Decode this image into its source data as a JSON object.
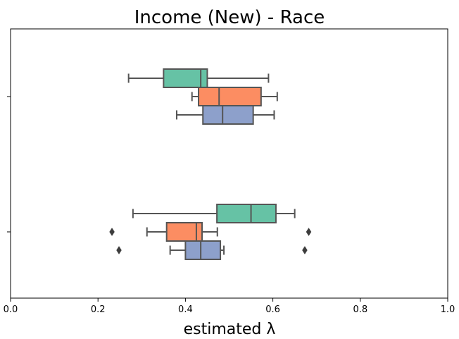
{
  "chart_data": {
    "type": "boxplot",
    "orientation": "horizontal",
    "title": "Income (New) - Race",
    "xlabel": "estimated λ",
    "ylabel": "",
    "xlim": [
      0.0,
      1.0
    ],
    "xticks": [
      "0.0",
      "0.2",
      "0.4",
      "0.6",
      "0.8",
      "1.0"
    ],
    "grid": false,
    "legend": "none",
    "groups": [
      {
        "boxes": [
          {
            "color": "#66c2a5",
            "whislo": 0.27,
            "q1": 0.35,
            "median": 0.435,
            "q3": 0.45,
            "whishi": 0.59,
            "fliers": []
          },
          {
            "color": "#fc8d62",
            "whislo": 0.415,
            "q1": 0.43,
            "median": 0.477,
            "q3": 0.573,
            "whishi": 0.61,
            "fliers": []
          },
          {
            "color": "#8da0cb",
            "whislo": 0.38,
            "q1": 0.44,
            "median": 0.485,
            "q3": 0.555,
            "whishi": 0.603,
            "fliers": []
          }
        ]
      },
      {
        "boxes": [
          {
            "color": "#66c2a5",
            "whislo": 0.28,
            "q1": 0.472,
            "median": 0.55,
            "q3": 0.607,
            "whishi": 0.65,
            "fliers": []
          },
          {
            "color": "#fc8d62",
            "whislo": 0.312,
            "q1": 0.357,
            "median": 0.425,
            "q3": 0.438,
            "whishi": 0.473,
            "fliers": [
              0.232,
              0.682
            ]
          },
          {
            "color": "#8da0cb",
            "whislo": 0.365,
            "q1": 0.4,
            "median": 0.435,
            "q3": 0.48,
            "whishi": 0.488,
            "fliers": [
              0.248,
              0.673
            ]
          }
        ]
      }
    ]
  }
}
